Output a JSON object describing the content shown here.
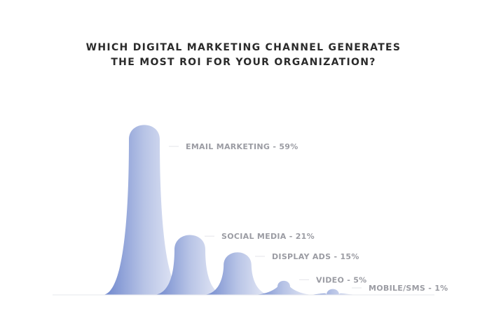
{
  "chart_data": {
    "type": "area",
    "title_lines": [
      "WHICH DIGITAL MARKETING CHANNEL GENERATES",
      "THE MOST ROI FOR YOUR ORGANIZATION?"
    ],
    "categories": [
      "EMAIL MARKETING",
      "SOCIAL MEDIA",
      "DISPLAY ADS",
      "VIDEO",
      "MOBILE/SMS"
    ],
    "values": [
      59,
      21,
      15,
      5,
      1
    ],
    "labels": [
      "EMAIL MARKETING - 59%",
      "SOCIAL MEDIA - 21%",
      "DISPLAY ADS - 15%",
      "VIDEO - 5%",
      "MOBILE/SMS - 1%"
    ],
    "unit": "%",
    "grid": false,
    "legend": "none",
    "colors": {
      "peak_dark": "#6b84cc",
      "peak_light": "#eef0f9",
      "label": "#9b9ca3",
      "title": "#2b2b2b"
    }
  }
}
